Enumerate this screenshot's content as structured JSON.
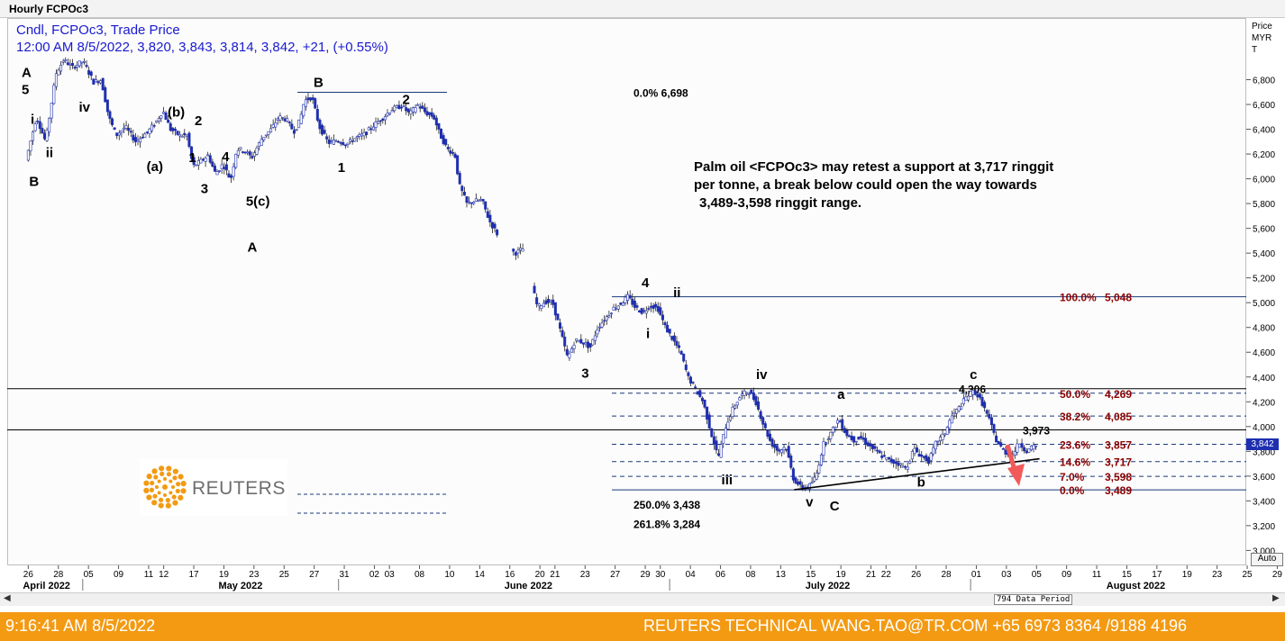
{
  "window": {
    "title": "Hourly FCPOc3"
  },
  "header": {
    "line1": "Cndl, FCPOc3, Trade Price",
    "line2": "12:00 AM 8/5/2022, 3,820, 3,843, 3,814, 3,842, +21, (+0.55%)"
  },
  "annotation": {
    "line1": "Palm oil <FCPOc3> may retest a support at 3,717 ringgit",
    "line2": "per tonne, a break below could open the way towards",
    "line3": "3,489-3,598 ringgit range."
  },
  "yaxis": {
    "title_lines": [
      "Price",
      "MYR",
      "T"
    ],
    "current_price": "3,842",
    "auto_label": "Auto"
  },
  "data_period": "794 Data Period",
  "logo": {
    "text": "REUTERS"
  },
  "footer": {
    "time": "9:16:41 AM 8/5/2022",
    "contact": "REUTERS TECHNICAL  WANG.TAO@TR.COM  +65 6973 8364 /9188 4196"
  },
  "colors": {
    "candle": "#1f2fb0",
    "fib_label": "#8b0000",
    "footer": "#f39a12",
    "arrow": "#f25a5a",
    "hline": "#1a3a7a"
  },
  "chart_data": {
    "type": "candlestick",
    "symbol": "FCPOc3",
    "interval": "Hourly",
    "price_unit": "MYR/T",
    "ylim": [
      2900,
      7000
    ],
    "y_ticks": [
      3000,
      3200,
      3400,
      3600,
      3800,
      4000,
      4200,
      4400,
      4600,
      4800,
      5000,
      5200,
      5400,
      5600,
      5800,
      6000,
      6200,
      6400,
      6600,
      6800
    ],
    "y_tick_labels": [
      "3,000",
      "3,200",
      "3,400",
      "3,600",
      "3,800",
      "4,000",
      "4,200",
      "4,400",
      "4,600",
      "4,800",
      "5,000",
      "5,200",
      "5,400",
      "5,600",
      "5,800",
      "6,000",
      "6,200",
      "6,400",
      "6,600",
      "6,800"
    ],
    "x_ticks": [
      {
        "label": "26",
        "i": 0
      },
      {
        "label": "28",
        "i": 2
      },
      {
        "label": "05",
        "i": 4
      },
      {
        "label": "09",
        "i": 6
      },
      {
        "label": "11",
        "i": 8
      },
      {
        "label": "12",
        "i": 9
      },
      {
        "label": "17",
        "i": 11
      },
      {
        "label": "19",
        "i": 13
      },
      {
        "label": "23",
        "i": 15
      },
      {
        "label": "25",
        "i": 17
      },
      {
        "label": "27",
        "i": 19
      },
      {
        "label": "31",
        "i": 21
      },
      {
        "label": "02",
        "i": 23
      },
      {
        "label": "03",
        "i": 24
      },
      {
        "label": "08",
        "i": 26
      },
      {
        "label": "10",
        "i": 28
      },
      {
        "label": "14",
        "i": 30
      },
      {
        "label": "16",
        "i": 32
      },
      {
        "label": "20",
        "i": 34
      },
      {
        "label": "21",
        "i": 35
      },
      {
        "label": "23",
        "i": 37
      },
      {
        "label": "27",
        "i": 39
      },
      {
        "label": "29",
        "i": 41
      },
      {
        "label": "30",
        "i": 42
      },
      {
        "label": "04",
        "i": 44
      },
      {
        "label": "06",
        "i": 46
      },
      {
        "label": "08",
        "i": 48
      },
      {
        "label": "13",
        "i": 50
      },
      {
        "label": "15",
        "i": 52
      },
      {
        "label": "19",
        "i": 54
      },
      {
        "label": "21",
        "i": 56
      },
      {
        "label": "22",
        "i": 57
      },
      {
        "label": "26",
        "i": 59
      },
      {
        "label": "28",
        "i": 61
      },
      {
        "label": "01",
        "i": 63
      },
      {
        "label": "03",
        "i": 65
      },
      {
        "label": "05",
        "i": 67
      },
      {
        "label": "09",
        "i": 69
      },
      {
        "label": "11",
        "i": 71
      },
      {
        "label": "15",
        "i": 73
      },
      {
        "label": "17",
        "i": 75
      },
      {
        "label": "19",
        "i": 77
      },
      {
        "label": "23",
        "i": 79
      },
      {
        "label": "25",
        "i": 81
      },
      {
        "label": "29",
        "i": 83
      }
    ],
    "months": [
      {
        "label": "April 2022",
        "i": 0
      },
      {
        "label": "May 2022",
        "i": 13
      },
      {
        "label": "June 2022",
        "i": 32
      },
      {
        "label": "July 2022",
        "i": 52
      },
      {
        "label": "August 2022",
        "i": 72
      }
    ],
    "month_separators": [
      4,
      21,
      43,
      63
    ],
    "price_path": [
      [
        0,
        6150
      ],
      [
        0.7,
        6500
      ],
      [
        1.3,
        6300
      ],
      [
        2,
        6850
      ],
      [
        2.5,
        6960
      ],
      [
        3.1,
        6900
      ],
      [
        3.8,
        6950
      ],
      [
        4.5,
        6780
      ],
      [
        5,
        6800
      ],
      [
        5.5,
        6500
      ],
      [
        6,
        6350
      ],
      [
        6.6,
        6420
      ],
      [
        7.3,
        6300
      ],
      [
        8.1,
        6380
      ],
      [
        8.6,
        6450
      ],
      [
        9.1,
        6550
      ],
      [
        9.6,
        6400
      ],
      [
        10.2,
        6350
      ],
      [
        10.7,
        6350
      ],
      [
        11.1,
        6100
      ],
      [
        11.6,
        6140
      ],
      [
        12.1,
        6190
      ],
      [
        12.6,
        6040
      ],
      [
        13.1,
        6120
      ],
      [
        13.6,
        5990
      ],
      [
        14,
        6240
      ],
      [
        14.5,
        6230
      ],
      [
        15,
        6170
      ],
      [
        15.7,
        6330
      ],
      [
        16.3,
        6400
      ],
      [
        16.8,
        6500
      ],
      [
        17.3,
        6480
      ],
      [
        17.8,
        6380
      ],
      [
        18.2,
        6470
      ],
      [
        18.5,
        6630
      ],
      [
        19,
        6660
      ],
      [
        19.5,
        6420
      ],
      [
        20.1,
        6290
      ],
      [
        20.7,
        6310
      ],
      [
        21.3,
        6280
      ],
      [
        21.9,
        6330
      ],
      [
        22.5,
        6360
      ],
      [
        23.1,
        6430
      ],
      [
        23.7,
        6490
      ],
      [
        24.3,
        6560
      ],
      [
        25,
        6590
      ],
      [
        25.5,
        6520
      ],
      [
        26,
        6600
      ],
      [
        26.6,
        6530
      ],
      [
        27.1,
        6500
      ],
      [
        27.5,
        6360
      ],
      [
        28,
        6240
      ],
      [
        28.5,
        6200
      ],
      [
        28.8,
        5950
      ],
      [
        29.3,
        5800
      ],
      [
        29.8,
        5820
      ],
      [
        30.3,
        5830
      ],
      [
        30.8,
        5660
      ],
      [
        31.3,
        5560
      ],
      [
        31.7,
        5460
      ],
      [
        32.2,
        5420
      ],
      [
        32.6,
        5400
      ],
      [
        33,
        5440
      ],
      [
        33.5,
        5200
      ],
      [
        34,
        4960
      ],
      [
        34.5,
        5010
      ],
      [
        35,
        5000
      ],
      [
        35.5,
        4780
      ],
      [
        36,
        4550
      ],
      [
        36.5,
        4700
      ],
      [
        37,
        4680
      ],
      [
        37.5,
        4640
      ],
      [
        38,
        4800
      ],
      [
        38.5,
        4870
      ],
      [
        39,
        4950
      ],
      [
        39.5,
        4990
      ],
      [
        40,
        5050
      ],
      [
        40.5,
        4960
      ],
      [
        41,
        4920
      ],
      [
        41.5,
        4980
      ],
      [
        42,
        4950
      ],
      [
        42.5,
        4800
      ],
      [
        43,
        4700
      ],
      [
        43.5,
        4600
      ],
      [
        44,
        4400
      ],
      [
        44.5,
        4300
      ],
      [
        45,
        4200
      ],
      [
        45.5,
        3960
      ],
      [
        46,
        3750
      ],
      [
        46.5,
        4000
      ],
      [
        47,
        4150
      ],
      [
        47.5,
        4250
      ],
      [
        48,
        4290
      ],
      [
        48.5,
        4200
      ],
      [
        49,
        4020
      ],
      [
        49.5,
        3870
      ],
      [
        50,
        3800
      ],
      [
        50.5,
        3840
      ],
      [
        51,
        3580
      ],
      [
        51.5,
        3510
      ],
      [
        52,
        3510
      ],
      [
        52.5,
        3600
      ],
      [
        53,
        3860
      ],
      [
        53.5,
        3950
      ],
      [
        54,
        4060
      ],
      [
        54.5,
        3940
      ],
      [
        55,
        3890
      ],
      [
        55.5,
        3910
      ],
      [
        56,
        3850
      ],
      [
        56.5,
        3800
      ],
      [
        57,
        3750
      ],
      [
        57.5,
        3720
      ],
      [
        58,
        3700
      ],
      [
        58.5,
        3660
      ],
      [
        59,
        3820
      ],
      [
        59.5,
        3760
      ],
      [
        60,
        3720
      ],
      [
        60.5,
        3880
      ],
      [
        61,
        3930
      ],
      [
        61.5,
        4080
      ],
      [
        62,
        4150
      ],
      [
        62.5,
        4240
      ],
      [
        63,
        4290
      ],
      [
        63.5,
        4200
      ],
      [
        64,
        4060
      ],
      [
        64.5,
        3880
      ],
      [
        65,
        3800
      ],
      [
        65.5,
        3760
      ],
      [
        66,
        3870
      ],
      [
        66.5,
        3800
      ],
      [
        67,
        3842
      ]
    ],
    "x_offset": 0.5,
    "gap_segments": [
      [
        31.3,
        32.2
      ],
      [
        33,
        33.5
      ]
    ],
    "fib_levels": [
      {
        "pct": "100.0%",
        "value": "5,048",
        "price": 5048
      },
      {
        "pct": "50.0%",
        "value": "4,269",
        "price": 4269
      },
      {
        "pct": "38.2%",
        "value": "4,085",
        "price": 4085
      },
      {
        "pct": "23.6%",
        "value": "3,857",
        "price": 3857
      },
      {
        "pct": "14.6%",
        "value": "3,717",
        "price": 3717
      },
      {
        "pct": "7.0%",
        "value": "3,598",
        "price": 3598
      },
      {
        "pct": "0.0%",
        "value": "3,489",
        "price": 3489
      }
    ],
    "extension_labels": [
      {
        "text": "0.0%    6,698",
        "price": 6698
      },
      {
        "text": "250.0% 3,438",
        "price": 3438
      },
      {
        "text": "261.8% 3,284",
        "price": 3284
      }
    ],
    "horizontal_lines": [
      {
        "price": 4306,
        "label": "4,306"
      },
      {
        "price": 3973,
        "label": "3,973"
      }
    ],
    "trendline": [
      [
        50.9,
        3490
      ],
      [
        67.2,
        3740
      ]
    ],
    "wave_labels": [
      {
        "t": "A",
        "i": -0.2,
        "p": 6860
      },
      {
        "t": "5",
        "i": -0.2,
        "p": 6720
      },
      {
        "t": "i",
        "i": 0.4,
        "p": 6480
      },
      {
        "t": "ii",
        "i": 1.4,
        "p": 6210
      },
      {
        "t": "iv",
        "i": 3.6,
        "p": 6580
      },
      {
        "t": "B",
        "i": 0.3,
        "p": 5980
      },
      {
        "t": "(b)",
        "i": 9.5,
        "p": 6540
      },
      {
        "t": "2",
        "i": 11.3,
        "p": 6470
      },
      {
        "t": "(a)",
        "i": 8.1,
        "p": 6100
      },
      {
        "t": "1",
        "i": 10.9,
        "p": 6170
      },
      {
        "t": "4",
        "i": 13.1,
        "p": 6180
      },
      {
        "t": "3",
        "i": 11.7,
        "p": 5920
      },
      {
        "t": "5(c)",
        "i": 14.7,
        "p": 5820
      },
      {
        "t": "A",
        "i": 14.8,
        "p": 5450
      },
      {
        "t": "B",
        "i": 19.2,
        "p": 6780
      },
      {
        "t": "2",
        "i": 25.1,
        "p": 6640
      },
      {
        "t": "1",
        "i": 20.8,
        "p": 6090
      },
      {
        "t": "4",
        "i": 41,
        "p": 5160
      },
      {
        "t": "ii",
        "i": 43.1,
        "p": 5080
      },
      {
        "t": "i",
        "i": 41.3,
        "p": 4750
      },
      {
        "t": "3",
        "i": 37,
        "p": 4430
      },
      {
        "t": "iv",
        "i": 48.6,
        "p": 4420
      },
      {
        "t": "iii",
        "i": 46.3,
        "p": 3570
      },
      {
        "t": "a",
        "i": 54,
        "p": 4260
      },
      {
        "t": "v",
        "i": 51.9,
        "p": 3390
      },
      {
        "t": "C",
        "i": 53.5,
        "p": 3360
      },
      {
        "t": "b",
        "i": 59.3,
        "p": 3550
      },
      {
        "t": "c",
        "i": 62.8,
        "p": 4420
      }
    ]
  }
}
